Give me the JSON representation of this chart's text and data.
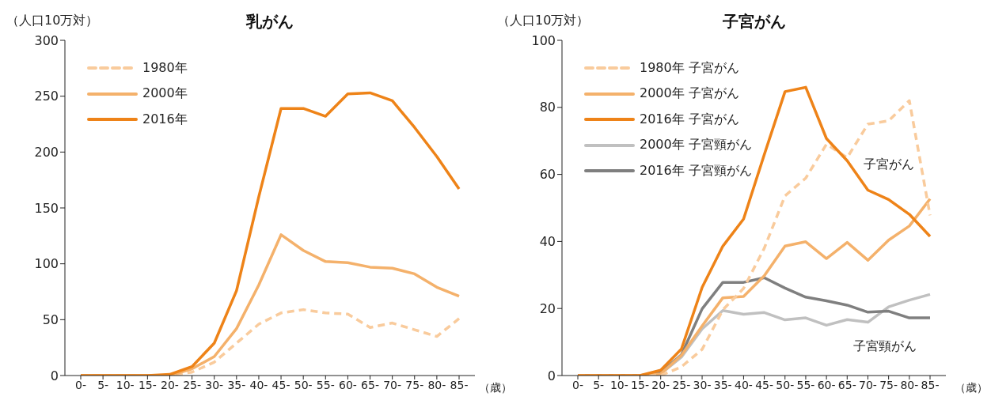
{
  "chart_data": [
    {
      "type": "line",
      "title": "乳がん",
      "ylabel": "（人口10万対）",
      "xlabel": "（歳）",
      "categories": [
        "0-",
        "5-",
        "10-",
        "15-",
        "20-",
        "25-",
        "30-",
        "35-",
        "40-",
        "45-",
        "50-",
        "55-",
        "60-",
        "65-",
        "70-",
        "75-",
        "80-",
        "85-"
      ],
      "ylim": [
        0,
        300
      ],
      "yticks": [
        0,
        50,
        100,
        150,
        200,
        250,
        300
      ],
      "legend": "top left",
      "marker": "none",
      "series": [
        {
          "name": "1980年",
          "color": "#f9cb9c",
          "line_style": "dashed",
          "values": [
            0,
            0,
            0,
            0,
            0,
            3,
            12,
            29,
            46,
            56,
            59,
            56,
            55,
            43,
            47,
            41,
            35,
            51
          ]
        },
        {
          "name": "2000年",
          "color": "#f4b16b",
          "values": [
            0,
            0,
            0,
            0,
            0,
            6,
            17,
            42,
            81,
            126,
            112,
            102,
            101,
            97,
            96,
            91,
            79,
            71
          ]
        },
        {
          "name": "2016年",
          "color": "#ee8318",
          "values": [
            0,
            0,
            0,
            0,
            1,
            8,
            29,
            76,
            160,
            239,
            239,
            232,
            252,
            253,
            246,
            222,
            196,
            167
          ]
        }
      ]
    },
    {
      "type": "line",
      "title": "子宮がん",
      "ylabel": "（人口10万対）",
      "xlabel": "（歳）",
      "categories": [
        "0-",
        "5-",
        "10-",
        "15-",
        "20-",
        "25-",
        "30-",
        "35-",
        "40-",
        "45-",
        "50-",
        "55-",
        "60-",
        "65-",
        "70-",
        "75-",
        "80-",
        "85-"
      ],
      "ylim": [
        0,
        100
      ],
      "yticks": [
        0,
        20,
        40,
        60,
        80,
        100
      ],
      "legend": "top left",
      "marker": "none",
      "annotations": [
        "子宮がん",
        "子宮頸がん"
      ],
      "series": [
        {
          "name": "1980年 子宮がん",
          "color": "#f9cb9c",
          "line_style": "dashed",
          "values": [
            0,
            0,
            0,
            0,
            0,
            2.6,
            7.8,
            19.6,
            26,
            38,
            53.6,
            58.9,
            69,
            65,
            75,
            76,
            82,
            47.8
          ]
        },
        {
          "name": "2000年 子宮がん",
          "color": "#f4b16b",
          "values": [
            0,
            0,
            0,
            0,
            0.5,
            6,
            14.8,
            23.2,
            23.6,
            29.8,
            38.6,
            39.9,
            34.9,
            39.7,
            34.4,
            40.4,
            44.6,
            52.7
          ]
        },
        {
          "name": "2016年 子宮がん",
          "color": "#ee8318",
          "values": [
            0,
            0,
            0,
            0,
            1.6,
            7.9,
            26.3,
            38.6,
            46.7,
            65.9,
            84.7,
            86,
            70.7,
            64.1,
            55.3,
            52.5,
            48.1,
            41.5
          ]
        },
        {
          "name": "2000年 子宮頸がん",
          "color": "#c0c0c0",
          "values": [
            0,
            0,
            0,
            0,
            0.5,
            5.5,
            13.9,
            19.4,
            18.3,
            18.8,
            16.6,
            17.2,
            15,
            16.7,
            15.9,
            20.5,
            22.5,
            24.2
          ]
        },
        {
          "name": "2016年 子宮頸がん",
          "color": "#7f7f7f",
          "values": [
            0,
            0,
            0,
            0,
            0.9,
            6.2,
            19.9,
            27.8,
            27.8,
            29.2,
            26.1,
            23.4,
            22.3,
            21,
            18.9,
            19.2,
            17.2,
            17.2
          ]
        }
      ]
    }
  ]
}
